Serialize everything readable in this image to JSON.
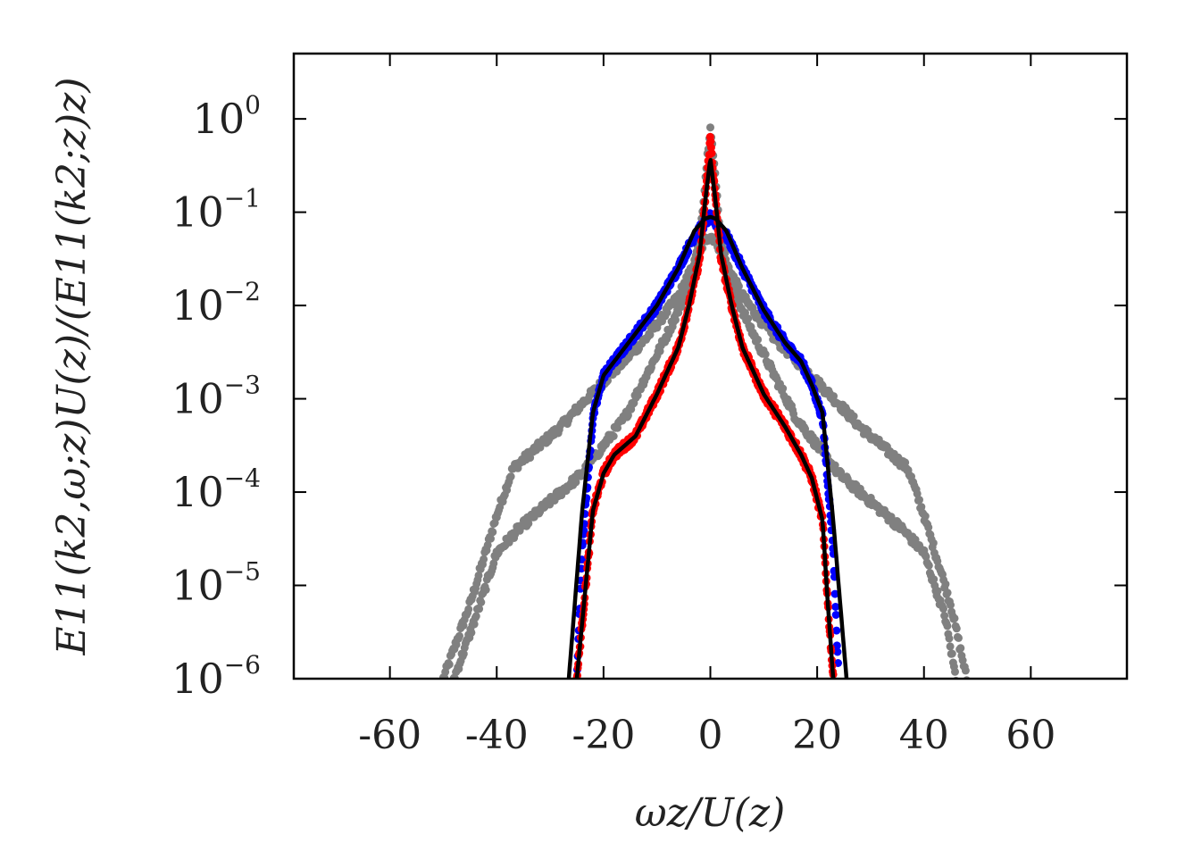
{
  "chart_data": {
    "type": "scatter",
    "xlabel": "ωz/U(z)",
    "ylabel": "E11(k2,ω;z)U(z)/(E11(k2;z)z)",
    "xlim": [
      -78,
      78
    ],
    "ylim_log10": [
      -6,
      0.7
    ],
    "y_log_scale": true,
    "grid": false,
    "legend": "none",
    "x_ticks": [
      {
        "value": -60,
        "label": "-60"
      },
      {
        "value": -40,
        "label": "-40"
      },
      {
        "value": -20,
        "label": "-20"
      },
      {
        "value": 0,
        "label": "0"
      },
      {
        "value": 20,
        "label": "20"
      },
      {
        "value": 40,
        "label": "40"
      },
      {
        "value": 60,
        "label": "60"
      }
    ],
    "y_ticks": [
      {
        "value": 0,
        "base": "10",
        "exp": "0"
      },
      {
        "value": -1,
        "base": "10",
        "exp": "−1"
      },
      {
        "value": -2,
        "base": "10",
        "exp": "−2"
      },
      {
        "value": -3,
        "base": "10",
        "exp": "−3"
      },
      {
        "value": -4,
        "base": "10",
        "exp": "−4"
      },
      {
        "value": -5,
        "base": "10",
        "exp": "−5"
      },
      {
        "value": -6,
        "base": "10",
        "exp": "−6"
      }
    ],
    "series": [
      {
        "kind": "scatter",
        "color": "#808080",
        "x": [
          -50,
          -45,
          -40,
          -37,
          -32,
          -28,
          -24,
          -18,
          -12,
          -6,
          -3,
          -1,
          0,
          1,
          3,
          6,
          12,
          18,
          24,
          28,
          32,
          37,
          40,
          45,
          48
        ],
        "log10_y": [
          -6,
          -5.2,
          -4.25,
          -3.75,
          -3.5,
          -3.3,
          -3.05,
          -2.7,
          -2.35,
          -1.9,
          -1.55,
          -1.3,
          -1.25,
          -1.3,
          -1.55,
          -1.9,
          -2.35,
          -2.7,
          -3.05,
          -3.3,
          -3.5,
          -3.75,
          -4.25,
          -5.2,
          -6
        ]
      },
      {
        "kind": "scatter",
        "color": "#808080",
        "x": [
          -48,
          -44,
          -40,
          -36,
          -32,
          -28,
          -24,
          -20,
          -16,
          -12,
          -8,
          -4,
          -2,
          0,
          2,
          4,
          8,
          12,
          16,
          20,
          24,
          28,
          32,
          36,
          40,
          44,
          46
        ],
        "log10_y": [
          -6,
          -5.35,
          -4.65,
          -4.4,
          -4.2,
          -4.0,
          -3.8,
          -3.5,
          -3.2,
          -2.75,
          -2.3,
          -1.8,
          -1.3,
          -0.05,
          -1.3,
          -1.8,
          -2.3,
          -2.75,
          -3.2,
          -3.5,
          -3.8,
          -4.0,
          -4.2,
          -4.4,
          -4.65,
          -5.35,
          -6
        ]
      },
      {
        "kind": "scatter",
        "color": "#0000ff",
        "x": [
          -25,
          -24,
          -22,
          -20,
          -18,
          -14,
          -10,
          -6,
          -3,
          0,
          3,
          6,
          10,
          14,
          17,
          19,
          21,
          23,
          24
        ],
        "log10_y": [
          -6,
          -4.6,
          -3.2,
          -2.75,
          -2.6,
          -2.3,
          -2.0,
          -1.6,
          -1.25,
          -1.05,
          -1.25,
          -1.6,
          -2.05,
          -2.4,
          -2.6,
          -2.85,
          -3.2,
          -4.6,
          -6
        ]
      },
      {
        "kind": "scatter",
        "color": "#ff0000",
        "x": [
          -25,
          -24,
          -22,
          -20,
          -18,
          -14,
          -10,
          -6,
          -4,
          -2,
          -1,
          0,
          1,
          2,
          4,
          6,
          10,
          14,
          17,
          19,
          21,
          22,
          23
        ],
        "log10_y": [
          -6,
          -5.4,
          -4.2,
          -3.8,
          -3.6,
          -3.4,
          -2.95,
          -2.45,
          -2.0,
          -1.5,
          -0.9,
          -0.2,
          -0.9,
          -1.5,
          -2.0,
          -2.45,
          -2.95,
          -3.3,
          -3.6,
          -3.85,
          -4.3,
          -5.2,
          -6
        ]
      },
      {
        "kind": "line",
        "color": "#000000",
        "x": [
          -26.5,
          -24,
          -22,
          -20,
          -18,
          -14,
          -10,
          -6,
          -3,
          -1,
          0,
          1,
          3,
          6,
          10,
          14,
          17,
          19,
          21,
          23,
          25.5
        ],
        "log10_y": [
          -6,
          -4.2,
          -3.15,
          -2.75,
          -2.6,
          -2.3,
          -2.0,
          -1.6,
          -1.2,
          -1.07,
          -1.05,
          -1.07,
          -1.2,
          -1.6,
          -2.05,
          -2.4,
          -2.6,
          -2.85,
          -3.15,
          -4.3,
          -6
        ]
      },
      {
        "kind": "line",
        "color": "#000000",
        "x": [
          -25,
          -24,
          -22,
          -20,
          -18,
          -14,
          -10,
          -6,
          -4,
          -2,
          -1,
          0,
          1,
          2,
          4,
          6,
          10,
          14,
          17,
          19,
          21,
          22,
          23
        ],
        "log10_y": [
          -6,
          -5.4,
          -4.2,
          -3.8,
          -3.6,
          -3.4,
          -2.95,
          -2.45,
          -2.0,
          -1.45,
          -0.9,
          -0.42,
          -0.9,
          -1.45,
          -2.0,
          -2.45,
          -2.95,
          -3.3,
          -3.6,
          -3.85,
          -4.3,
          -5.2,
          -6
        ]
      }
    ]
  }
}
